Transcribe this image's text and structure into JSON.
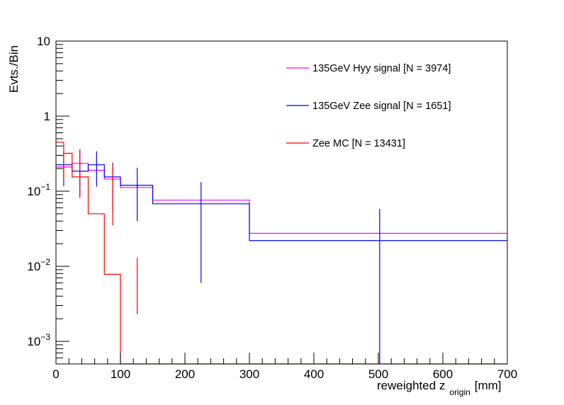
{
  "chart_data": {
    "type": "line",
    "style": "step-histogram-with-error-bars",
    "xlabel": "reweighted z",
    "xlabel_subscript": "origin",
    "xlabel_unit": "[mm]",
    "ylabel": "Evts./Bin",
    "xlim": [
      0,
      700
    ],
    "ylim": [
      0.0005,
      10
    ],
    "yscale": "log",
    "grid": false,
    "legend_position": "top-right",
    "x_ticks": [
      0,
      100,
      200,
      300,
      400,
      500,
      600,
      700
    ],
    "x_tick_labels": [
      "0",
      "100",
      "200",
      "300",
      "400",
      "500",
      "600",
      "700"
    ],
    "y_major_ticks": [
      0.001,
      0.01,
      0.1,
      1,
      10
    ],
    "y_tick_labels": [
      {
        "value": 10,
        "base": "10",
        "exp": ""
      },
      {
        "value": 1,
        "base": "1",
        "exp": ""
      },
      {
        "value": 0.1,
        "base": "10",
        "exp": "−1"
      },
      {
        "value": 0.01,
        "base": "10",
        "exp": "−2"
      },
      {
        "value": 0.001,
        "base": "10",
        "exp": "−3"
      }
    ],
    "series": [
      {
        "name": "135GeV Hyy signal [N = 3974]",
        "color": "#ff00ff",
        "bin_edges": [
          0,
          25,
          50,
          75,
          100,
          150,
          300,
          700
        ],
        "values": [
          0.21,
          0.235,
          0.19,
          0.145,
          0.112,
          0.076,
          0.0275
        ],
        "errors": []
      },
      {
        "name": "135GeV Zee signal [N = 1651]",
        "color": "#0000ff",
        "bin_edges": [
          0,
          25,
          50,
          75,
          100,
          150,
          300,
          700
        ],
        "values": [
          0.225,
          0.185,
          0.225,
          0.155,
          0.12,
          0.068,
          0.022
        ],
        "errors": [
          {
            "x": 12,
            "low": 0.117,
            "high": 0.345
          },
          {
            "x": 37,
            "low": 0.082,
            "high": 0.36
          },
          {
            "x": 63,
            "low": 0.115,
            "high": 0.34
          },
          {
            "x": 88,
            "low": 0.052,
            "high": 0.24
          },
          {
            "x": 126,
            "low": 0.04,
            "high": 0.205
          },
          {
            "x": 225,
            "low": 0.006,
            "high": 0.132
          },
          {
            "x": 502,
            "low": 0.0005,
            "high": 0.058
          }
        ]
      },
      {
        "name": "Zee MC [N = 13431]",
        "color": "#ff0000",
        "bin_edges": [
          0,
          12,
          25,
          50,
          75,
          100,
          150,
          700
        ],
        "values": [
          0.45,
          0.32,
          0.155,
          0.05,
          0.0078,
          0.0005,
          0.0005
        ],
        "errors": [
          {
            "x": 12,
            "low": 0.135,
            "high": 0.335
          },
          {
            "x": 37,
            "low": 0.082,
            "high": 0.36
          },
          {
            "x": 88,
            "low": 0.035,
            "high": 0.24
          },
          {
            "x": 126,
            "low": 0.0023,
            "high": 0.013
          }
        ]
      }
    ]
  }
}
